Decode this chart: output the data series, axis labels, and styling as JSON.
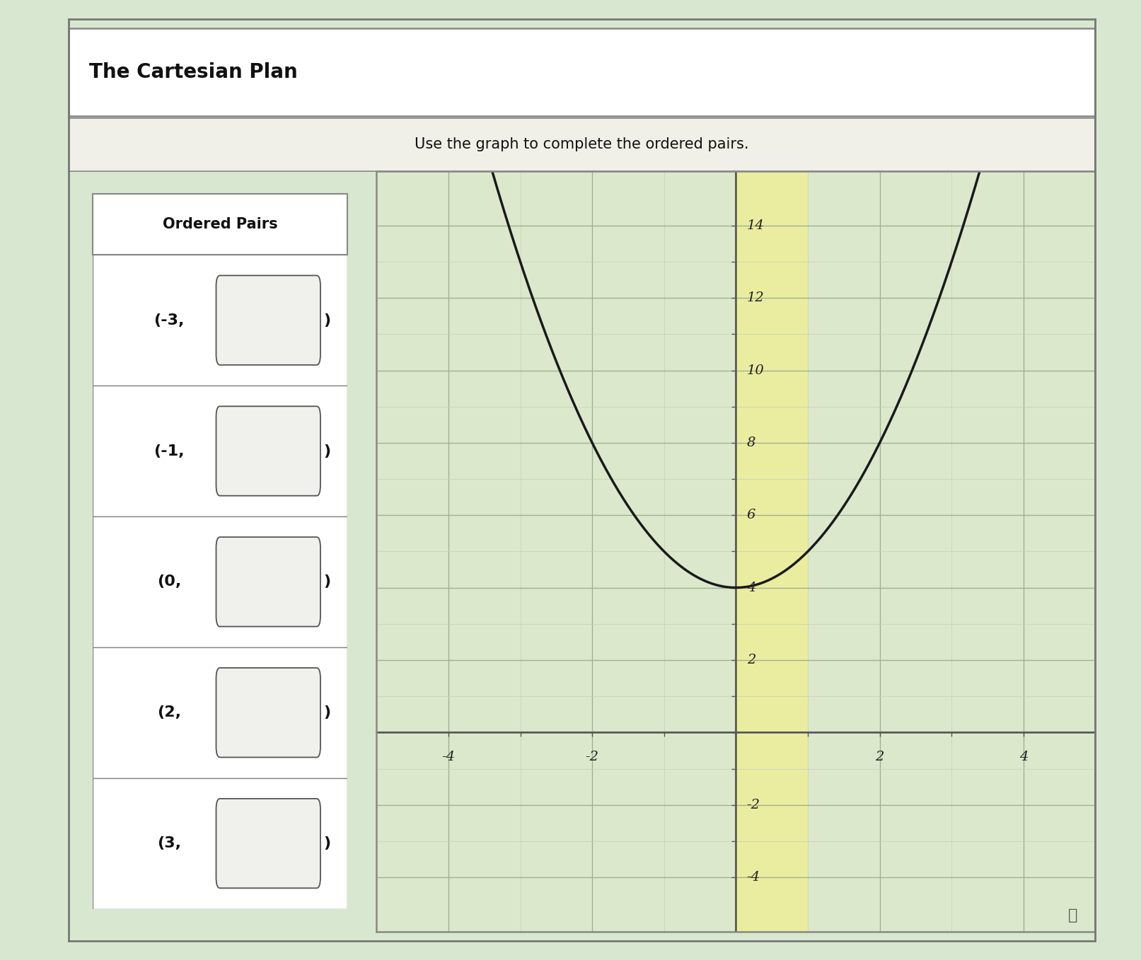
{
  "title": "The Cartesian Plan",
  "subtitle": "Use the graph to complete the ordered pairs.",
  "ordered_pairs_label": "Ordered Pairs",
  "ordered_pairs": [
    {
      "x_label": "(-3,"
    },
    {
      "x_label": "(-1,"
    },
    {
      "x_label": "(0,"
    },
    {
      "x_label": "(2,"
    },
    {
      "x_label": "(3,"
    }
  ],
  "xlim": [
    -5,
    5
  ],
  "ylim": [
    -5.5,
    15.5
  ],
  "xticks": [
    -4,
    -2,
    2,
    4
  ],
  "yticks": [
    -4,
    -2,
    2,
    4,
    6,
    8,
    10,
    12,
    14
  ],
  "grid_minor_color": "#c8d4b8",
  "grid_major_color": "#a0b090",
  "curve_color": "#1a1a1a",
  "curve_linewidth": 2.5,
  "bg_outer": "#d8e8d0",
  "bg_striped": true,
  "bg_plot_area": "#dce8cc",
  "bg_white_panel": "#f5f5ee",
  "box_border": "#888888",
  "font_title": 20,
  "font_subtitle": 15,
  "font_pairs_header": 15,
  "font_pairs": 16,
  "font_axis": 14,
  "highlight_col_color": "#f0f090",
  "axis_color": "#555555",
  "title_bg": "#ffffff",
  "subtitle_bg": "#f0f0e8",
  "pairs_bg": "#e8eee0"
}
